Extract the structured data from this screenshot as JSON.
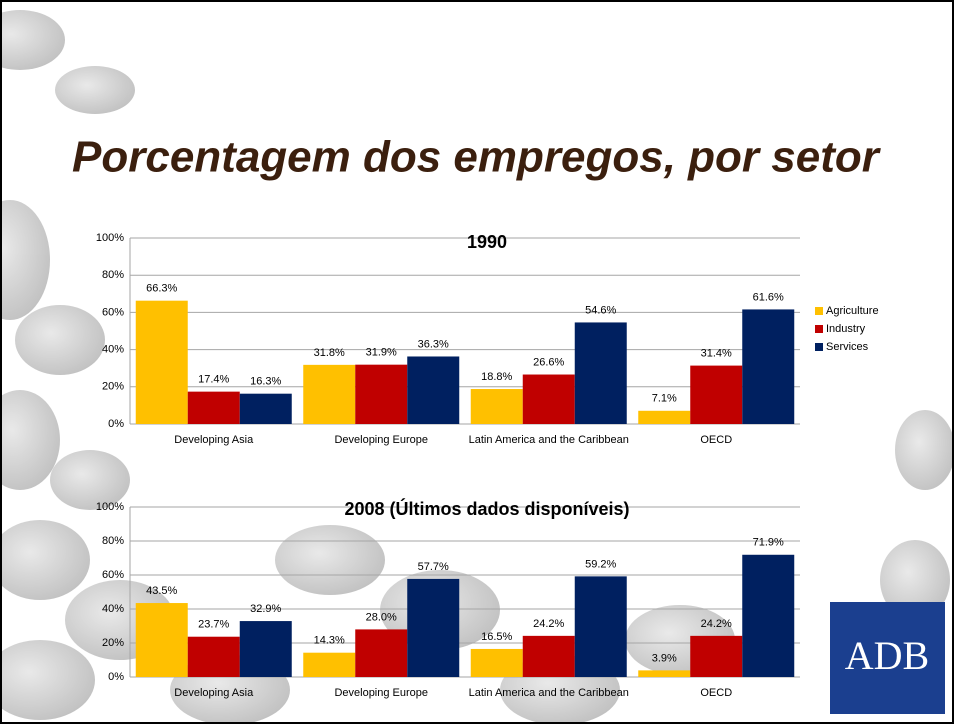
{
  "slide_title": "Porcentagem dos empregos, por setor",
  "logo": "ADB",
  "chart_data": [
    {
      "type": "bar",
      "title": "1990",
      "categories": [
        "Developing Asia",
        "Developing Europe",
        "Latin America and the Caribbean",
        "OECD"
      ],
      "series": [
        {
          "name": "Agriculture",
          "color": "#ffc000",
          "values": [
            66.3,
            31.8,
            18.8,
            7.1
          ],
          "value_labels": [
            "66.3%",
            "31.8%",
            "18.8%",
            "7.1%"
          ]
        },
        {
          "name": "Industry",
          "color": "#c00000",
          "values": [
            17.4,
            31.9,
            26.6,
            31.4
          ],
          "value_labels": [
            "17.4%",
            "31.9%",
            "26.6%",
            "31.4%"
          ]
        },
        {
          "name": "Services",
          "color": "#002060",
          "values": [
            16.3,
            36.3,
            54.6,
            61.6
          ],
          "value_labels": [
            "16.3%",
            "36.3%",
            "54.6%",
            "61.6%"
          ]
        }
      ],
      "ylim": [
        0,
        100
      ],
      "yticks": [
        {
          "value": 0,
          "label": "0%"
        },
        {
          "value": 20,
          "label": "20%"
        },
        {
          "value": 40,
          "label": "40%"
        },
        {
          "value": 60,
          "label": "60%"
        },
        {
          "value": 80,
          "label": "80%"
        },
        {
          "value": 100,
          "label": "100%"
        }
      ],
      "grid": true,
      "legend": "right"
    },
    {
      "type": "bar",
      "title": "2008 (Últimos dados disponíveis)",
      "categories": [
        "Developing Asia",
        "Developing Europe",
        "Latin America and the Caribbean",
        "OECD"
      ],
      "series": [
        {
          "color": "#ffc000",
          "values": [
            43.5,
            14.3,
            16.5,
            3.9
          ],
          "value_labels": [
            "43.5%",
            "14.3%",
            "16.5%",
            "3.9%"
          ]
        },
        {
          "color": "#c00000",
          "values": [
            23.7,
            28.0,
            24.2,
            24.2
          ],
          "value_labels": [
            "23.7%",
            "28.0%",
            "24.2%",
            "24.2%"
          ]
        },
        {
          "color": "#002060",
          "values": [
            32.9,
            57.7,
            59.2,
            71.9
          ],
          "value_labels": [
            "32.9%",
            "57.7%",
            "59.2%",
            "71.9%"
          ]
        }
      ],
      "ylim": [
        0,
        100
      ],
      "yticks": [
        {
          "value": 0,
          "label": "0%"
        },
        {
          "value": 20,
          "label": "20%"
        },
        {
          "value": 40,
          "label": "40%"
        },
        {
          "value": 60,
          "label": "60%"
        },
        {
          "value": 80,
          "label": "80%"
        },
        {
          "value": 100,
          "label": "100%"
        }
      ],
      "grid": true
    }
  ]
}
